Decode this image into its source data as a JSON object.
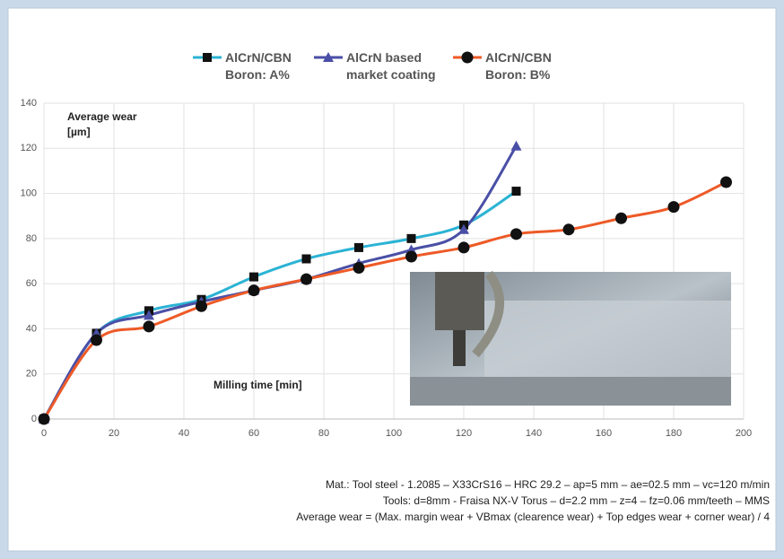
{
  "chart_data": {
    "type": "line",
    "y_label": "Average wear\n[µm]",
    "x_label": "Milling time [min]",
    "x": [
      0,
      15,
      30,
      45,
      60,
      75,
      90,
      105,
      120,
      135,
      150,
      165,
      180,
      195
    ],
    "series": [
      {
        "name": "AlCrN/CBN\nBoron: A%",
        "color": "#2bb3d4",
        "marker": "square",
        "values": [
          0,
          38,
          48,
          53,
          63,
          71,
          76,
          80,
          86,
          101,
          null,
          null,
          null,
          null
        ]
      },
      {
        "name": "AlCrN based\nmarket coating",
        "color": "#4a4fa6",
        "marker": "triangle",
        "values": [
          0,
          38,
          46,
          52,
          57,
          62,
          69,
          75,
          84,
          121,
          null,
          null,
          null,
          null
        ]
      },
      {
        "name": "AlCrN/CBN\nBoron: B%",
        "color": "#ee5a27",
        "marker": "circle",
        "values": [
          0,
          35,
          41,
          50,
          57,
          62,
          67,
          72,
          76,
          82,
          84,
          89,
          94,
          105
        ]
      }
    ],
    "xlim": [
      0,
      200
    ],
    "xticks": [
      0,
      20,
      40,
      60,
      80,
      100,
      120,
      140,
      160,
      180,
      200
    ],
    "ylim": [
      0,
      140
    ],
    "yticks": [
      0,
      20,
      40,
      60,
      80,
      100,
      120,
      140
    ],
    "grid": true,
    "notes": [
      "Mat.: Tool steel - 1.2085 – X33CrS16 – HRC 29.2 – ap=5 mm – ae=02.5 mm – vc=120 m/min",
      "Tools: d=8mm - Fraisa NX-V Torus – d=2.2 mm – z=4 – fz=0.06 mm/teeth – MMS",
      "Average wear = (Max. margin wear + VBmax (clearence wear) + Top edges wear + corner wear) / 4"
    ]
  }
}
